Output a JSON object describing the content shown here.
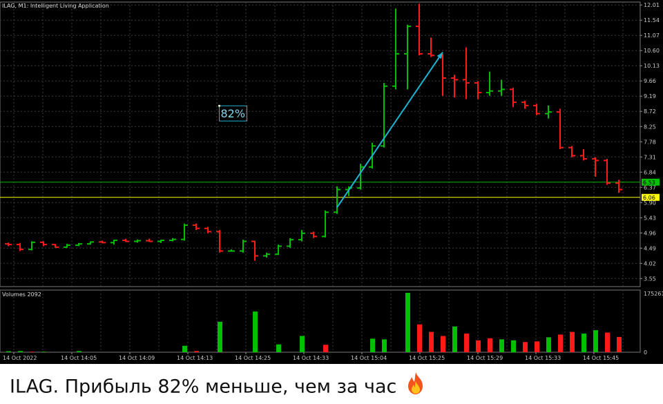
{
  "chart_data": [
    {
      "type": "ohlc",
      "title": "ILAG, M1:  Intelligent Living Application",
      "ylim": [
        3.3,
        12.1
      ],
      "y_ticks": [
        "12.01",
        "11.54",
        "11.07",
        "10.60",
        "10.13",
        "9.66",
        "9.19",
        "8.72",
        "8.25",
        "7.78",
        "7.31",
        "6.84",
        "6.37",
        "5.90",
        "5.43",
        "4.96",
        "4.49",
        "4.02",
        "3.55"
      ],
      "x_ticks": [
        "14 Oct 2022",
        "14 Oct 14:05",
        "14 Oct 14:09",
        "14 Oct 14:13",
        "14 Oct 14:25",
        "14 Oct 14:33",
        "14 Oct 15:04",
        "14 Oct 15:25",
        "14 Oct 15:29",
        "14 Oct 15:33",
        "14 Oct 15:45"
      ],
      "price_levels": [
        {
          "value": 6.53,
          "label": "6.53",
          "color": "#00c000"
        },
        {
          "value": 6.06,
          "label": "6.06",
          "color": "#ffff00"
        }
      ],
      "bull_color": "#00c000",
      "bear_color": "#ff1a1a",
      "grid": true,
      "bars": [
        {
          "o": 4.62,
          "h": 4.66,
          "l": 4.55,
          "c": 4.6
        },
        {
          "o": 4.6,
          "h": 4.65,
          "l": 4.4,
          "c": 4.45
        },
        {
          "o": 4.45,
          "h": 4.7,
          "l": 4.42,
          "c": 4.67
        },
        {
          "o": 4.67,
          "h": 4.7,
          "l": 4.55,
          "c": 4.6
        },
        {
          "o": 4.6,
          "h": 4.62,
          "l": 4.5,
          "c": 4.52
        },
        {
          "o": 4.52,
          "h": 4.62,
          "l": 4.5,
          "c": 4.58
        },
        {
          "o": 4.58,
          "h": 4.65,
          "l": 4.55,
          "c": 4.62
        },
        {
          "o": 4.62,
          "h": 4.7,
          "l": 4.6,
          "c": 4.68
        },
        {
          "o": 4.68,
          "h": 4.72,
          "l": 4.64,
          "c": 4.66
        },
        {
          "o": 4.66,
          "h": 4.75,
          "l": 4.6,
          "c": 4.73
        },
        {
          "o": 4.73,
          "h": 4.78,
          "l": 4.68,
          "c": 4.7
        },
        {
          "o": 4.7,
          "h": 4.76,
          "l": 4.66,
          "c": 4.72
        },
        {
          "o": 4.72,
          "h": 4.78,
          "l": 4.68,
          "c": 4.7
        },
        {
          "o": 4.7,
          "h": 4.75,
          "l": 4.65,
          "c": 4.73
        },
        {
          "o": 4.73,
          "h": 4.8,
          "l": 4.7,
          "c": 4.76
        },
        {
          "o": 4.76,
          "h": 5.25,
          "l": 4.72,
          "c": 5.2
        },
        {
          "o": 5.2,
          "h": 5.25,
          "l": 5.05,
          "c": 5.1
        },
        {
          "o": 5.1,
          "h": 5.15,
          "l": 4.95,
          "c": 5.0
        },
        {
          "o": 5.0,
          "h": 5.05,
          "l": 4.35,
          "c": 4.4
        },
        {
          "o": 4.4,
          "h": 4.45,
          "l": 4.38,
          "c": 4.4
        },
        {
          "o": 4.4,
          "h": 4.75,
          "l": 4.35,
          "c": 4.7
        },
        {
          "o": 4.7,
          "h": 4.72,
          "l": 4.1,
          "c": 4.25
        },
        {
          "o": 4.25,
          "h": 4.35,
          "l": 4.2,
          "c": 4.3
        },
        {
          "o": 4.3,
          "h": 4.6,
          "l": 4.28,
          "c": 4.55
        },
        {
          "o": 4.55,
          "h": 4.8,
          "l": 4.5,
          "c": 4.75
        },
        {
          "o": 4.75,
          "h": 5.05,
          "l": 4.7,
          "c": 4.95
        },
        {
          "o": 4.95,
          "h": 5.0,
          "l": 4.8,
          "c": 4.85
        },
        {
          "o": 4.85,
          "h": 5.65,
          "l": 4.82,
          "c": 5.6
        },
        {
          "o": 5.6,
          "h": 6.4,
          "l": 5.55,
          "c": 6.3
        },
        {
          "o": 6.3,
          "h": 6.4,
          "l": 6.1,
          "c": 6.35
        },
        {
          "o": 6.35,
          "h": 7.1,
          "l": 6.3,
          "c": 7.0
        },
        {
          "o": 7.0,
          "h": 7.75,
          "l": 6.95,
          "c": 7.65
        },
        {
          "o": 7.65,
          "h": 9.6,
          "l": 7.6,
          "c": 9.5
        },
        {
          "o": 9.5,
          "h": 11.9,
          "l": 9.4,
          "c": 10.5
        },
        {
          "o": 10.5,
          "h": 11.4,
          "l": 9.4,
          "c": 11.35
        },
        {
          "o": 11.35,
          "h": 12.05,
          "l": 10.45,
          "c": 10.5
        },
        {
          "o": 10.5,
          "h": 11.0,
          "l": 10.4,
          "c": 10.45
        },
        {
          "o": 10.45,
          "h": 10.5,
          "l": 9.2,
          "c": 9.75
        },
        {
          "o": 9.75,
          "h": 9.85,
          "l": 9.15,
          "c": 9.7
        },
        {
          "o": 9.7,
          "h": 10.7,
          "l": 9.1,
          "c": 9.6
        },
        {
          "o": 9.6,
          "h": 9.65,
          "l": 9.1,
          "c": 9.3
        },
        {
          "o": 9.3,
          "h": 9.95,
          "l": 9.2,
          "c": 9.35
        },
        {
          "o": 9.35,
          "h": 9.7,
          "l": 9.2,
          "c": 9.4
        },
        {
          "o": 9.4,
          "h": 9.45,
          "l": 8.85,
          "c": 9.0
        },
        {
          "o": 9.0,
          "h": 9.05,
          "l": 8.8,
          "c": 8.9
        },
        {
          "o": 8.9,
          "h": 8.95,
          "l": 8.6,
          "c": 8.65
        },
        {
          "o": 8.65,
          "h": 8.9,
          "l": 8.5,
          "c": 8.7
        },
        {
          "o": 8.7,
          "h": 8.8,
          "l": 7.55,
          "c": 7.6
        },
        {
          "o": 7.6,
          "h": 7.65,
          "l": 7.3,
          "c": 7.35
        },
        {
          "o": 7.35,
          "h": 7.55,
          "l": 7.2,
          "c": 7.25
        },
        {
          "o": 7.25,
          "h": 7.3,
          "l": 6.7,
          "c": 7.2
        },
        {
          "o": 7.2,
          "h": 7.25,
          "l": 6.45,
          "c": 6.5
        },
        {
          "o": 6.5,
          "h": 6.6,
          "l": 6.2,
          "c": 6.3
        }
      ],
      "annotation": {
        "label": "82%",
        "x_bar": 18.5,
        "y": 8.55
      },
      "trend_line": {
        "from_bar": 28,
        "from_y": 5.75,
        "to_bar": 37,
        "to_y": 10.55,
        "color": "#1eb4d2"
      }
    },
    {
      "type": "bar",
      "title": "Volumes 2092",
      "y_ticks": [
        "175261",
        "0"
      ],
      "ylim": [
        0,
        175261
      ],
      "values": [
        3000,
        3500,
        1500,
        1500,
        0,
        0,
        3500,
        0,
        0,
        0,
        0,
        0,
        0,
        0,
        0,
        19000,
        3500,
        0,
        90000,
        0,
        0,
        120000,
        0,
        23000,
        0,
        48000,
        0,
        22000,
        0,
        0,
        0,
        40000,
        38000,
        0,
        175261,
        82000,
        60000,
        48000,
        76000,
        55000,
        35000,
        41000,
        38000,
        35000,
        30000,
        32000,
        44000,
        52000,
        60000,
        55000,
        65000,
        58000,
        45000
      ],
      "colors": [
        "bull",
        "bull",
        "bear",
        "bull",
        "bull",
        "bull",
        "bull",
        "bull",
        "bull",
        "bull",
        "bull",
        "bull",
        "bull",
        "bull",
        "bull",
        "bull",
        "bear",
        "bull",
        "bull",
        "bull",
        "bull",
        "bull",
        "bull",
        "bull",
        "bull",
        "bull",
        "bull",
        "bear",
        "bull",
        "bull",
        "bull",
        "bull",
        "bull",
        "bull",
        "bull",
        "bear",
        "bear",
        "bear",
        "bull",
        "bear",
        "bear",
        "bear",
        "bull",
        "bull",
        "bear",
        "bear",
        "bull",
        "bear",
        "bear",
        "bull",
        "bull",
        "bear",
        "bear"
      ]
    }
  ],
  "caption": {
    "text": "ILAG. Прибыль 82% меньше, чем за час"
  },
  "icons": {
    "caption_icon": "fire-icon"
  }
}
